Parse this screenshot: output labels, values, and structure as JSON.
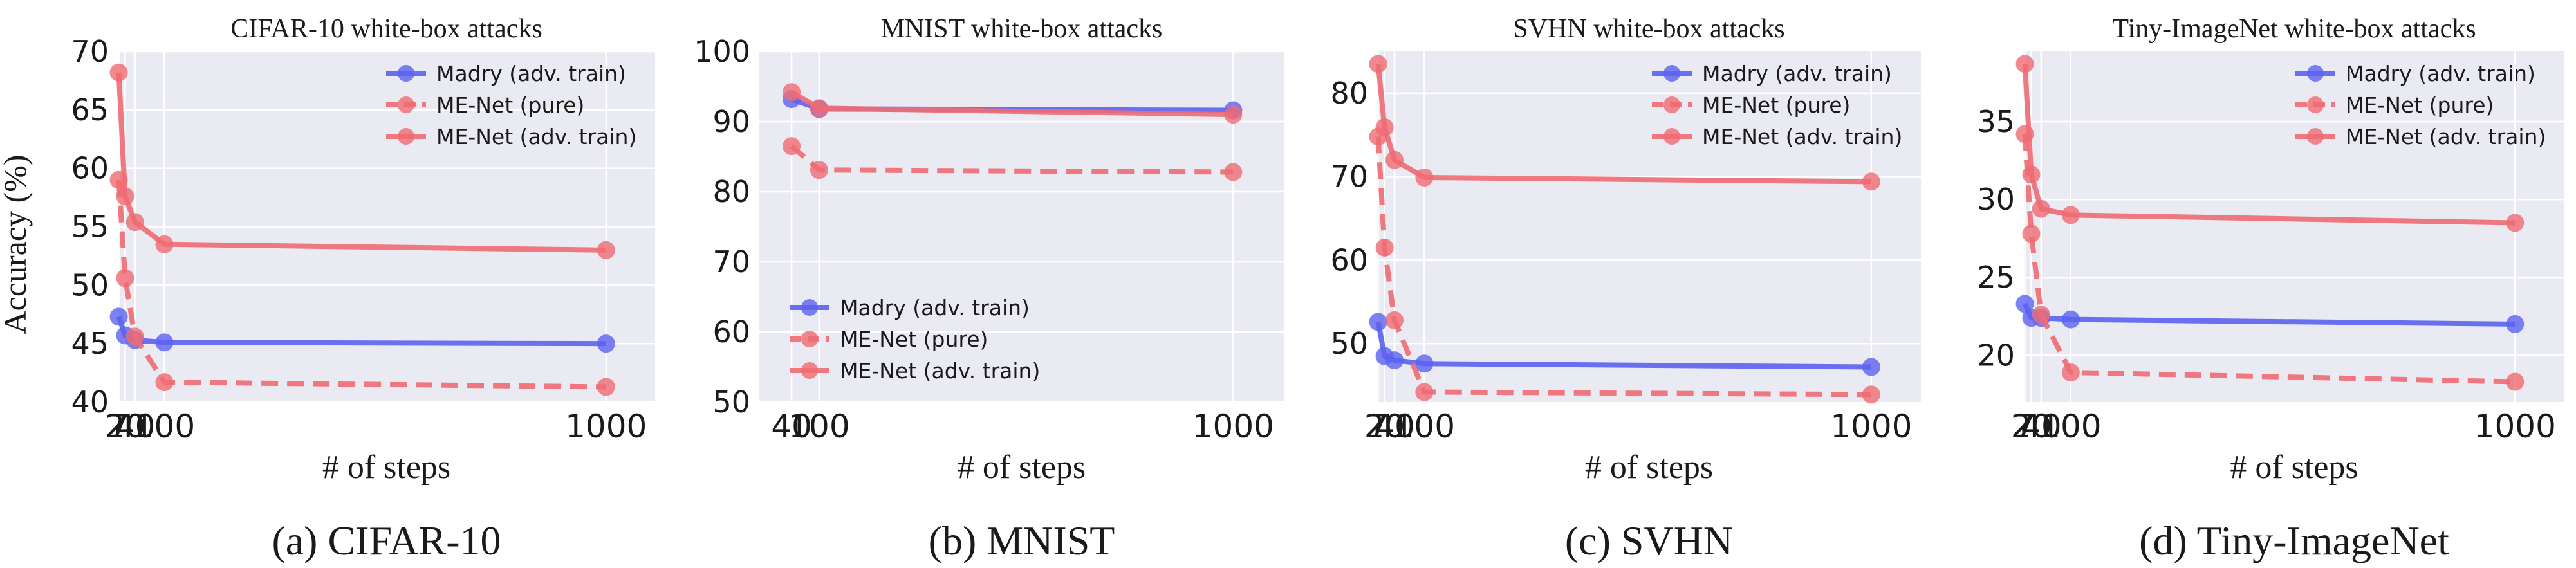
{
  "figure": {
    "ylabel": "Accuracy (%)",
    "xlabel": "# of steps"
  },
  "colors": {
    "madry": "#5b63f0",
    "menet": "#ef6b73",
    "plot_bg": "#eaeaf2",
    "grid": "#ffffff"
  },
  "chart_data": [
    {
      "type": "line",
      "title": "CIFAR-10 white-box attacks",
      "caption": "(a) CIFAR-10",
      "xlabel": "# of steps",
      "ylabel": "Accuracy (%)",
      "x": [
        7,
        20,
        40,
        100,
        1000
      ],
      "xlim": [
        5,
        1100
      ],
      "ylim": [
        40,
        70
      ],
      "yticks": [
        40,
        45,
        50,
        55,
        60,
        65,
        70
      ],
      "legend": "top-right",
      "series": [
        {
          "name": "Madry (adv. train)",
          "style": "solid",
          "color_key": "madry",
          "values": [
            47.3,
            45.7,
            45.3,
            45.1,
            45.0
          ]
        },
        {
          "name": "ME-Net (pure)",
          "style": "dashed",
          "color_key": "menet",
          "values": [
            59.0,
            50.6,
            45.6,
            41.7,
            41.3
          ]
        },
        {
          "name": "ME-Net (adv. train)",
          "style": "solid",
          "color_key": "menet",
          "values": [
            68.2,
            57.6,
            55.4,
            53.5,
            53.0
          ]
        }
      ]
    },
    {
      "type": "line",
      "title": "MNIST white-box attacks",
      "caption": "(b) MNIST",
      "xlabel": "# of steps",
      "ylabel": "",
      "x": [
        40,
        100,
        1000
      ],
      "xlim": [
        -30,
        1110
      ],
      "ylim": [
        50,
        100
      ],
      "yticks": [
        50,
        60,
        70,
        80,
        90,
        100
      ],
      "legend": "bottom-left",
      "series": [
        {
          "name": "Madry  (adv. train)",
          "style": "solid",
          "color_key": "madry",
          "values": [
            93.2,
            91.8,
            91.6
          ]
        },
        {
          "name": "ME-Net (pure)",
          "style": "dashed",
          "color_key": "menet",
          "values": [
            86.5,
            83.1,
            82.8
          ]
        },
        {
          "name": "ME-Net (adv. train)",
          "style": "solid",
          "color_key": "menet",
          "values": [
            94.2,
            91.9,
            91.0
          ]
        }
      ]
    },
    {
      "type": "line",
      "title": "SVHN white-box attacks",
      "caption": "(c) SVHN",
      "xlabel": "# of steps",
      "ylabel": "",
      "x": [
        7,
        20,
        40,
        100,
        1000
      ],
      "xlim": [
        5,
        1100
      ],
      "ylim": [
        43,
        85
      ],
      "yticks": [
        50,
        60,
        70,
        80
      ],
      "legend": "top-right",
      "series": [
        {
          "name": "Madry (adv. train)",
          "style": "solid",
          "color_key": "madry",
          "values": [
            52.6,
            48.5,
            48.0,
            47.6,
            47.2
          ]
        },
        {
          "name": "ME-Net (pure)",
          "style": "dashed",
          "color_key": "menet",
          "values": [
            74.8,
            61.5,
            52.8,
            44.2,
            43.9
          ]
        },
        {
          "name": "ME-Net (adv. train)",
          "style": "solid",
          "color_key": "menet",
          "values": [
            83.5,
            75.9,
            72.0,
            69.9,
            69.4
          ]
        }
      ]
    },
    {
      "type": "line",
      "title": "Tiny-ImageNet white-box attacks",
      "caption": "(d) Tiny-ImageNet",
      "xlabel": "# of steps",
      "ylabel": "",
      "x": [
        7,
        20,
        40,
        100,
        1000
      ],
      "xlim": [
        5,
        1100
      ],
      "ylim": [
        17,
        39.5
      ],
      "yticks": [
        20,
        25,
        30,
        35
      ],
      "legend": "top-right",
      "series": [
        {
          "name": "Madry (adv. train)",
          "style": "solid",
          "color_key": "madry",
          "values": [
            23.3,
            22.4,
            22.4,
            22.3,
            22.0
          ]
        },
        {
          "name": "ME-Net (pure)",
          "style": "dashed",
          "color_key": "menet",
          "values": [
            34.2,
            27.8,
            22.6,
            18.9,
            18.3
          ]
        },
        {
          "name": "ME-Net (adv. train)",
          "style": "solid",
          "color_key": "menet",
          "values": [
            38.7,
            31.6,
            29.4,
            29.0,
            28.5
          ]
        }
      ]
    }
  ]
}
